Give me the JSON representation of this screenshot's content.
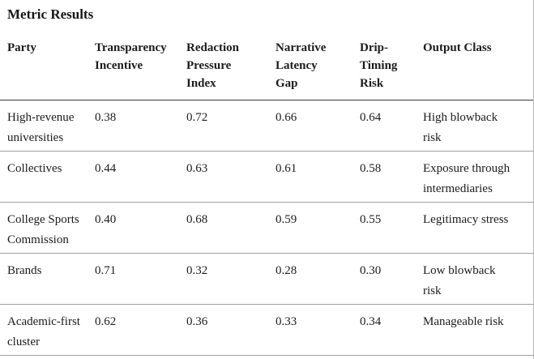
{
  "page": {
    "title": "Metric Results"
  },
  "table": {
    "columns": [
      {
        "label": "Party"
      },
      {
        "label": "Transparency Incentive"
      },
      {
        "label": "Redaction Pressure Index"
      },
      {
        "label": "Narrative Latency Gap"
      },
      {
        "label": "Drip-Timing Risk"
      },
      {
        "label": "Output Class"
      }
    ],
    "rows": [
      {
        "party": "High-revenue universities",
        "transparency_incentive": "0.38",
        "redaction_pressure_index": "0.72",
        "narrative_latency_gap": "0.66",
        "drip_timing_risk": "0.64",
        "output_class": "High blowback risk"
      },
      {
        "party": "Collectives",
        "transparency_incentive": "0.44",
        "redaction_pressure_index": "0.63",
        "narrative_latency_gap": "0.61",
        "drip_timing_risk": "0.58",
        "output_class": "Exposure through intermediaries"
      },
      {
        "party": "College Sports Commission",
        "transparency_incentive": "0.40",
        "redaction_pressure_index": "0.68",
        "narrative_latency_gap": "0.59",
        "drip_timing_risk": "0.55",
        "output_class": "Legitimacy stress"
      },
      {
        "party": "Brands",
        "transparency_incentive": "0.71",
        "redaction_pressure_index": "0.32",
        "narrative_latency_gap": "0.28",
        "drip_timing_risk": "0.30",
        "output_class": "Low blowback risk"
      },
      {
        "party": "Academic-first cluster",
        "transparency_incentive": "0.62",
        "redaction_pressure_index": "0.36",
        "narrative_latency_gap": "0.33",
        "drip_timing_risk": "0.34",
        "output_class": "Manageable risk"
      }
    ],
    "row_field_order": [
      "party",
      "transparency_incentive",
      "redaction_pressure_index",
      "narrative_latency_gap",
      "drip_timing_risk",
      "output_class"
    ]
  },
  "colors": {
    "background": "#ffffff",
    "text": "#1c1c1c",
    "header_rule": "#3a3a3a",
    "row_rule": "#a0a0a0",
    "edge_rule": "#b9b9b9"
  }
}
